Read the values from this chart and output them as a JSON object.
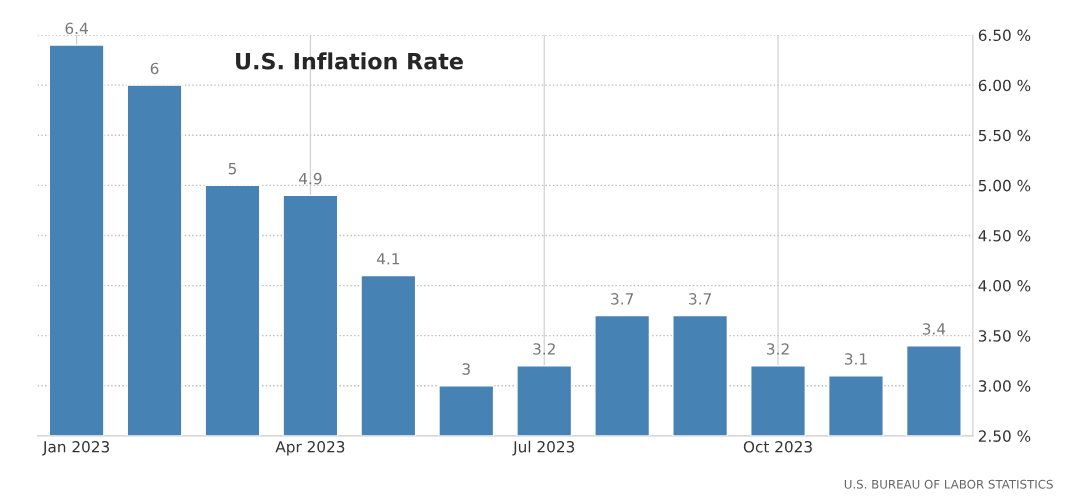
{
  "chart_data": {
    "type": "bar",
    "title": "U.S. Inflation Rate",
    "categories": [
      "Jan 2023",
      null,
      null,
      "Apr 2023",
      null,
      null,
      "Jul 2023",
      null,
      null,
      "Oct 2023",
      null,
      null
    ],
    "values": [
      6.4,
      6,
      5,
      4.9,
      4.1,
      3,
      3.2,
      3.7,
      3.7,
      3.2,
      3.1,
      3.4
    ],
    "color": "#4682b4",
    "ylim": [
      2.5,
      6.5
    ],
    "yticks": [
      {
        "value": 2.5,
        "label": "2.50 %"
      },
      {
        "value": 3.0,
        "label": "3.00 %"
      },
      {
        "value": 3.5,
        "label": "3.50 %"
      },
      {
        "value": 4.0,
        "label": "4.00 %"
      },
      {
        "value": 4.5,
        "label": "4.50 %"
      },
      {
        "value": 5.0,
        "label": "5.00 %"
      },
      {
        "value": 5.5,
        "label": "5.50 %"
      },
      {
        "value": 6.0,
        "label": "6.00 %"
      },
      {
        "value": 6.5,
        "label": "6.50 %"
      }
    ],
    "grid": true,
    "data_labels": true,
    "annotations": [
      "U.S. BUREAU OF LABOR STATISTICS"
    ]
  }
}
